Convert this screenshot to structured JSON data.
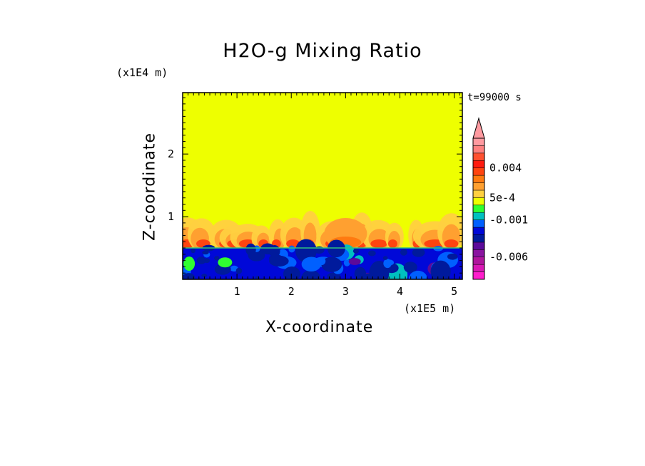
{
  "chart_data": {
    "type": "heatmap",
    "title": "H2O-g Mixing Ratio",
    "xlabel": "X-coordinate",
    "ylabel": "Z-coordinate",
    "x_unit_label": "(x1E5 m)",
    "y_unit_label": "(x1E4 m)",
    "time_label": "t=99000 s",
    "xlim": [
      0,
      5.15
    ],
    "ylim": [
      0,
      2.98
    ],
    "x_ticks": [
      "1",
      "2",
      "3",
      "4",
      "5"
    ],
    "y_ticks": [
      "1",
      "2"
    ],
    "colorbar": {
      "levels": [
        -0.009,
        -0.008,
        -0.007,
        -0.006,
        -0.005,
        -0.004,
        -0.003,
        -0.002,
        -0.001,
        -0.0005,
        0,
        0.0005,
        0.001,
        0.002,
        0.003,
        0.004,
        0.005,
        0.006,
        0.007
      ],
      "colors": [
        "#ff1dcc",
        "#d918b4",
        "#b0159c",
        "#8a14a0",
        "#5c0a9a",
        "#001a9c",
        "#0008d8",
        "#0060ff",
        "#00c0c0",
        "#30ff30",
        "#eeff00",
        "#ffd040",
        "#ffa030",
        "#ff7a10",
        "#ff4410",
        "#ff1a10",
        "#ff5030",
        "#ff8080",
        "#ff9aa0"
      ],
      "tick_labels": [
        "0.004",
        "5e-4",
        "-0.001",
        "-0.006"
      ],
      "tick_values": [
        0.004,
        0.0005,
        -0.001,
        -0.006
      ]
    },
    "background_value_color": "#eeff00",
    "boundary_layer_top_z": 0.5,
    "plume_top_z": 1.05,
    "plumes_x": [
      0.1,
      0.35,
      0.8,
      1.0,
      1.2,
      1.45,
      1.75,
      2.05,
      2.35,
      2.75,
      3.05,
      3.3,
      3.6,
      3.9,
      4.3,
      4.65,
      4.95
    ]
  }
}
